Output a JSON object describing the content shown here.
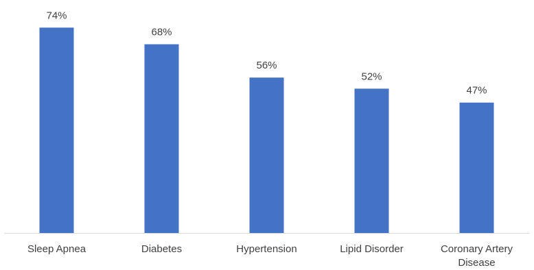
{
  "chart_data": {
    "type": "bar",
    "categories": [
      "Sleep Apnea",
      "Diabetes",
      "Hypertension",
      "Lipid Disorder",
      "Coronary Artery Disease"
    ],
    "category_lines": [
      [
        "Sleep Apnea"
      ],
      [
        "Diabetes"
      ],
      [
        "Hypertension"
      ],
      [
        "Lipid Disorder"
      ],
      [
        "Coronary Artery",
        "Disease"
      ]
    ],
    "values": [
      74,
      68,
      56,
      52,
      47
    ],
    "data_labels": [
      "74%",
      "68%",
      "56%",
      "52%",
      "47%"
    ],
    "ylim": [
      0,
      100
    ],
    "grid": false,
    "legend": "none",
    "bar_color": "#4472C4",
    "axis_color": "#D9D9D9",
    "text_color": "#404040"
  }
}
